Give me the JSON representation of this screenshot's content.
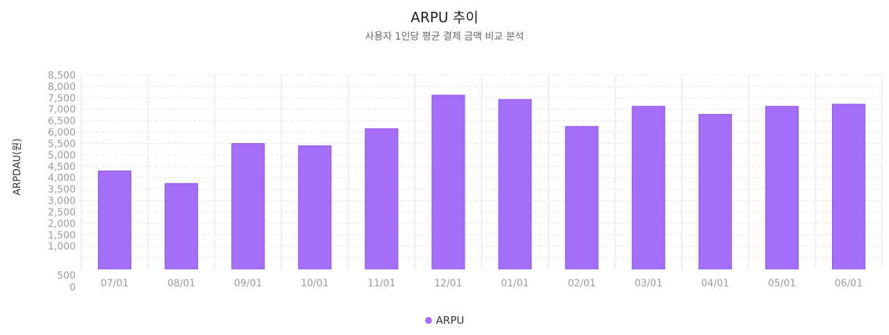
{
  "chart_data": {
    "type": "bar",
    "title": "ARPU 추이",
    "subtitle": "사용자 1인당 평균 결제 금액 비교 분석",
    "xlabel": "",
    "ylabel": "ARPDAU(원)",
    "categories": [
      "07/01",
      "08/01",
      "09/01",
      "10/01",
      "11/01",
      "12/01",
      "01/01",
      "02/01",
      "03/01",
      "04/01",
      "05/01",
      "06/01"
    ],
    "series": [
      {
        "name": "ARPU",
        "values": [
          4300,
          3750,
          5500,
          5400,
          6150,
          7620,
          7430,
          6250,
          7130,
          6780,
          7130,
          7220
        ]
      }
    ],
    "ylim": [
      0,
      8500
    ],
    "yticks": [
      0,
      500,
      1000,
      1500,
      2000,
      2500,
      3000,
      3500,
      4000,
      4500,
      5000,
      5500,
      6000,
      6500,
      7000,
      7500,
      8000,
      8500
    ],
    "ytick_labels": [
      "0",
      "500",
      "1,000",
      "1,500",
      "2,000",
      "2,500",
      "3,000",
      "3,500",
      "4,000",
      "4,500",
      "5,000",
      "5,500",
      "6,000",
      "6,500",
      "7,000",
      "7,500",
      "8,000",
      "8,500"
    ],
    "grid": true,
    "legend_position": "bottom-center",
    "colors": {
      "bar": "#a56ef8",
      "bar_border": "#8b52e8",
      "grid": "#e3e3e3",
      "tick_text": "#9a9a9a"
    }
  }
}
